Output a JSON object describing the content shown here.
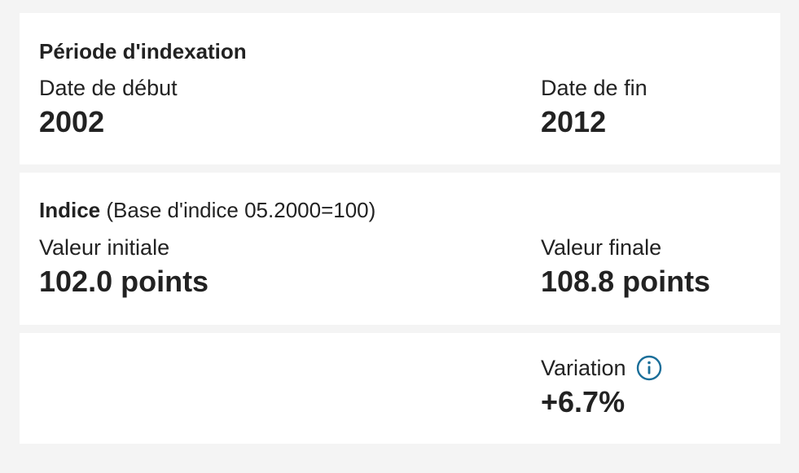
{
  "indexation_period": {
    "title": "Période d'indexation",
    "start_label": "Date de début",
    "start_value": "2002",
    "end_label": "Date de fin",
    "end_value": "2012"
  },
  "index": {
    "title": "Indice",
    "subtitle": "(Base d'indice 05.2000=100)",
    "initial_label": "Valeur initiale",
    "initial_value": "102.0 points",
    "final_label": "Valeur finale",
    "final_value": "108.8 points"
  },
  "variation": {
    "label": "Variation",
    "value": "+6.7%",
    "info_icon": "info-circle-icon"
  },
  "colors": {
    "accent": "#1a6e99",
    "page_background": "#f4f4f4",
    "card_background": "#ffffff",
    "text": "#222222"
  }
}
